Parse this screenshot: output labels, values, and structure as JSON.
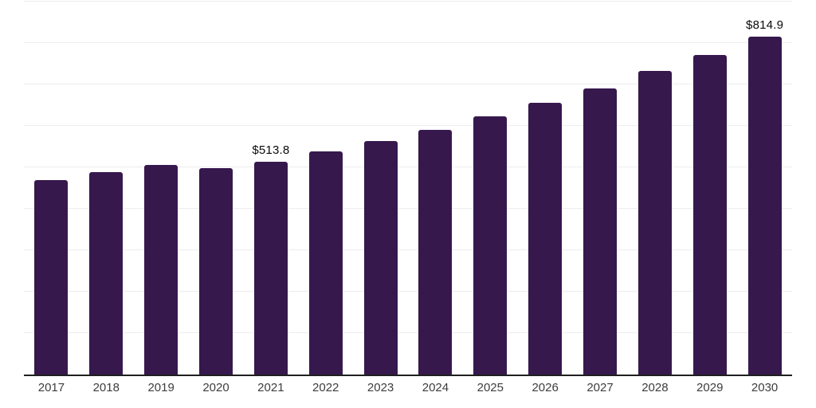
{
  "chart_data": {
    "type": "bar",
    "title": "",
    "xlabel": "",
    "ylabel": "",
    "categories": [
      "2017",
      "2018",
      "2019",
      "2020",
      "2021",
      "2022",
      "2023",
      "2024",
      "2025",
      "2026",
      "2027",
      "2028",
      "2029",
      "2030"
    ],
    "values": [
      469,
      488,
      505,
      498,
      513.8,
      539,
      564,
      591,
      623,
      655,
      690,
      732,
      771,
      814.9
    ],
    "value_labels": [
      null,
      null,
      null,
      null,
      "$513.8",
      null,
      null,
      null,
      null,
      null,
      null,
      null,
      null,
      "$814.9"
    ],
    "ylim": [
      0,
      900
    ],
    "grid_step": 100,
    "grid": "horizontal-only",
    "legend": "none",
    "colors": {
      "bar": "#36184d",
      "gridline": "#ededed",
      "axis_line": "#1f1f1f",
      "tick_label": "#3d3d3d",
      "value_label": "#0a0a0a"
    }
  }
}
